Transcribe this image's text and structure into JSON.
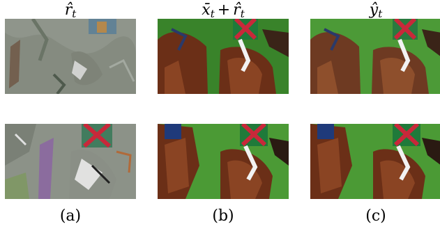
{
  "figure": {
    "columns": [
      {
        "title_main": "r̂",
        "title_sub": "t",
        "label": "(a)",
        "kind": "residual"
      },
      {
        "title_main_1": "x̄",
        "title_sub_1": "t",
        "title_op": "+",
        "title_main_2": "r̂",
        "title_sub_2": "t",
        "label": "(b)",
        "kind": "sum"
      },
      {
        "title_main": "ŷ",
        "title_sub": "t",
        "label": "(c)",
        "kind": "output"
      }
    ],
    "colors": {
      "grass": "#3f8f2e",
      "grass_dark": "#2f6e22",
      "horse": "#6b2f17",
      "horse_light": "#8a4423",
      "jockey_green": "#1f7a3a",
      "jockey_red": "#c8283a",
      "residual_gray": "#8c9288"
    }
  }
}
